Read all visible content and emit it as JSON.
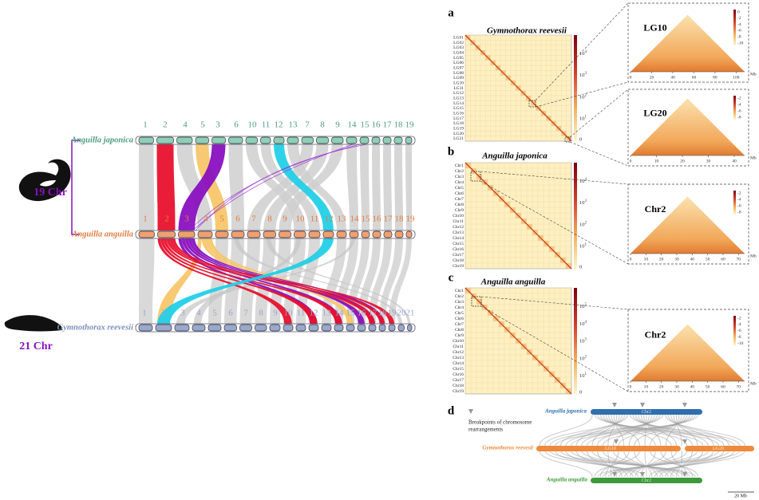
{
  "left": {
    "genomes": [
      {
        "name": "Anguilla japonica",
        "chromosomes": [
          1,
          2,
          4,
          5,
          3,
          6,
          10,
          11,
          12,
          13,
          7,
          8,
          9,
          14,
          15,
          16,
          17,
          18,
          19
        ]
      },
      {
        "name": "Anguilla anguilla",
        "chromosomes": [
          1,
          2,
          3,
          4,
          5,
          6,
          7,
          8,
          9,
          10,
          11,
          12,
          13,
          14,
          15,
          16,
          17,
          18,
          19
        ]
      },
      {
        "name": "Gymnothorax reevesii",
        "chromosomes": [
          1,
          2,
          3,
          4,
          5,
          6,
          7,
          8,
          9,
          10,
          11,
          12,
          13,
          14,
          15,
          16,
          17,
          18,
          19,
          20,
          21
        ]
      }
    ],
    "chromosome_counts": [
      "19 Chr",
      "21 Chr"
    ]
  },
  "hic_panels": [
    {
      "letter": "a",
      "title": "Gymnothorax reevesii",
      "rows": [
        "LG01",
        "LG02",
        "LG03",
        "LG04",
        "LG05",
        "LG06",
        "LG07",
        "LG08",
        "LG09",
        "LG10",
        "LG11",
        "LG12",
        "LG13",
        "LG14",
        "LG15",
        "LG16",
        "LG17",
        "LG18",
        "LG19",
        "LG20",
        "LG21"
      ],
      "scale": [
        {
          "base": "10",
          "exp": "4"
        },
        {
          "base": "10",
          "exp": "3"
        },
        {
          "base": "10",
          "exp": "2"
        },
        {
          "base": "10",
          "exp": "1"
        },
        "0"
      ],
      "zooms": [
        {
          "title": "LG10",
          "scale": [
            "0",
            "-2",
            "-4",
            "-6",
            "-8",
            "-10"
          ],
          "xticks": [
            "0",
            "20",
            "40",
            "60",
            "80",
            "100"
          ],
          "unit": "Mb"
        },
        {
          "title": "LG20",
          "scale": [
            "-2",
            "-4",
            "-6",
            "-8"
          ],
          "xticks": [
            "0",
            "10",
            "20",
            "30",
            "40"
          ],
          "unit": "Mb"
        }
      ]
    },
    {
      "letter": "b",
      "title": "Anguilla japonica",
      "rows": [
        "Chr1",
        "Chr2",
        "Chr3",
        "Chr4",
        "Chr5",
        "Chr6",
        "Chr7",
        "Chr8",
        "Chr9",
        "Chr10",
        "Chr11",
        "Chr12",
        "Chr13",
        "Chr14",
        "Chr15",
        "Chr16",
        "Chr17",
        "Chr18",
        "Chr19"
      ],
      "scale": [
        {
          "base": "10",
          "exp": "4"
        },
        {
          "base": "10",
          "exp": "3"
        },
        {
          "base": "10",
          "exp": "2"
        },
        {
          "base": "10",
          "exp": "1"
        },
        "0"
      ],
      "zooms": [
        {
          "title": "Chr2",
          "scale": [
            "-2",
            "-4",
            "-6",
            "-8"
          ],
          "xticks": [
            "0",
            "10",
            "20",
            "30",
            "40",
            "50",
            "60",
            "70"
          ],
          "unit": "Mb"
        }
      ]
    },
    {
      "letter": "c",
      "title": "Anguilla anguilla",
      "rows": [
        "Chr1",
        "Chr2",
        "Chr3",
        "Chr4",
        "Chr5",
        "Chr6",
        "Chr7",
        "Chr8",
        "Chr9",
        "Chr10",
        "Chr11",
        "Chr12",
        "Chr13",
        "Chr14",
        "Chr15",
        "Chr16",
        "Chr17",
        "Chr18",
        "Chr19"
      ],
      "scale": [
        {
          "base": "10",
          "exp": "5"
        },
        {
          "base": "10",
          "exp": "4"
        },
        {
          "base": "10",
          "exp": "3"
        },
        {
          "base": "10",
          "exp": "2"
        },
        {
          "base": "10",
          "exp": "1"
        },
        "0"
      ],
      "zooms": [
        {
          "title": "Chr2",
          "scale": [
            "-2",
            "-4",
            "-6",
            "-8",
            "-10"
          ],
          "xticks": [
            "0",
            "10",
            "20",
            "30",
            "40",
            "50",
            "60",
            "70"
          ],
          "unit": "Mb"
        }
      ]
    }
  ],
  "synteny": {
    "letter": "d",
    "legend": [
      "Breakpoints of chromosome",
      "rearrangements"
    ],
    "tracks": [
      {
        "species": "Anguilla japonica",
        "chromosomes": [
          "Chr2"
        ]
      },
      {
        "species": "Gymnothorax reevesii",
        "chromosomes": [
          "LG10",
          "LG20"
        ]
      },
      {
        "species": "Anguilla anguilla",
        "chromosomes": [
          "Chr2"
        ]
      }
    ],
    "scale_bar": "20 Mb"
  }
}
